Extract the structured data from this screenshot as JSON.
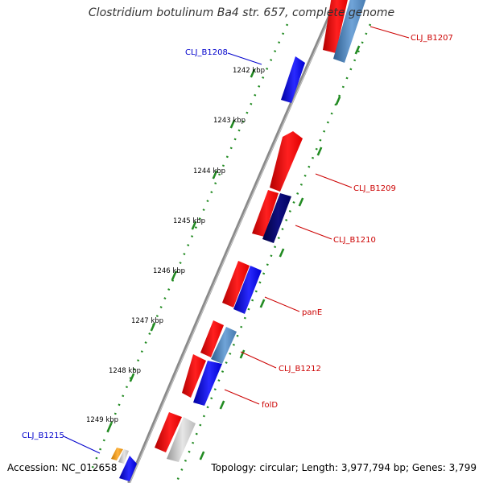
{
  "title": "Clostridium botulinum Ba4 str. 657, complete genome",
  "footer": {
    "accession": "Accession: NC_012658",
    "summary": "Topology: circular; Length: 3,977,794 bp; Genes: 3,799"
  },
  "ticks": [
    {
      "label": "1242 kbp"
    },
    {
      "label": "1243 kbp"
    },
    {
      "label": "1244 kbp"
    },
    {
      "label": "1245 kbp"
    },
    {
      "label": "1246 kbp"
    },
    {
      "label": "1247 kbp"
    },
    {
      "label": "1248 kbp"
    },
    {
      "label": "1249 kbp"
    }
  ],
  "gene_labels": [
    {
      "text": "CLJ_B1207",
      "color": "#cc0000"
    },
    {
      "text": "CLJ_B1208",
      "color": "#0000cc"
    },
    {
      "text": "CLJ_B1209",
      "color": "#cc0000"
    },
    {
      "text": "CLJ_B1210",
      "color": "#cc0000"
    },
    {
      "text": "panE",
      "color": "#cc0000"
    },
    {
      "text": "CLJ_B1212",
      "color": "#cc0000"
    },
    {
      "text": "folD",
      "color": "#cc0000"
    },
    {
      "text": "CLJ_B1215",
      "color": "#0000cc"
    }
  ],
  "colors": {
    "backbone": "#8a8a8a",
    "tick": "#228b22",
    "forward_cds": "#ff1a1a",
    "blue_cds": "#1010ee",
    "navy_cds": "#000066",
    "steel_cds": "#4f87c0",
    "grey_cds": "#c8c8c8",
    "orange_cds": "#f5a623"
  }
}
